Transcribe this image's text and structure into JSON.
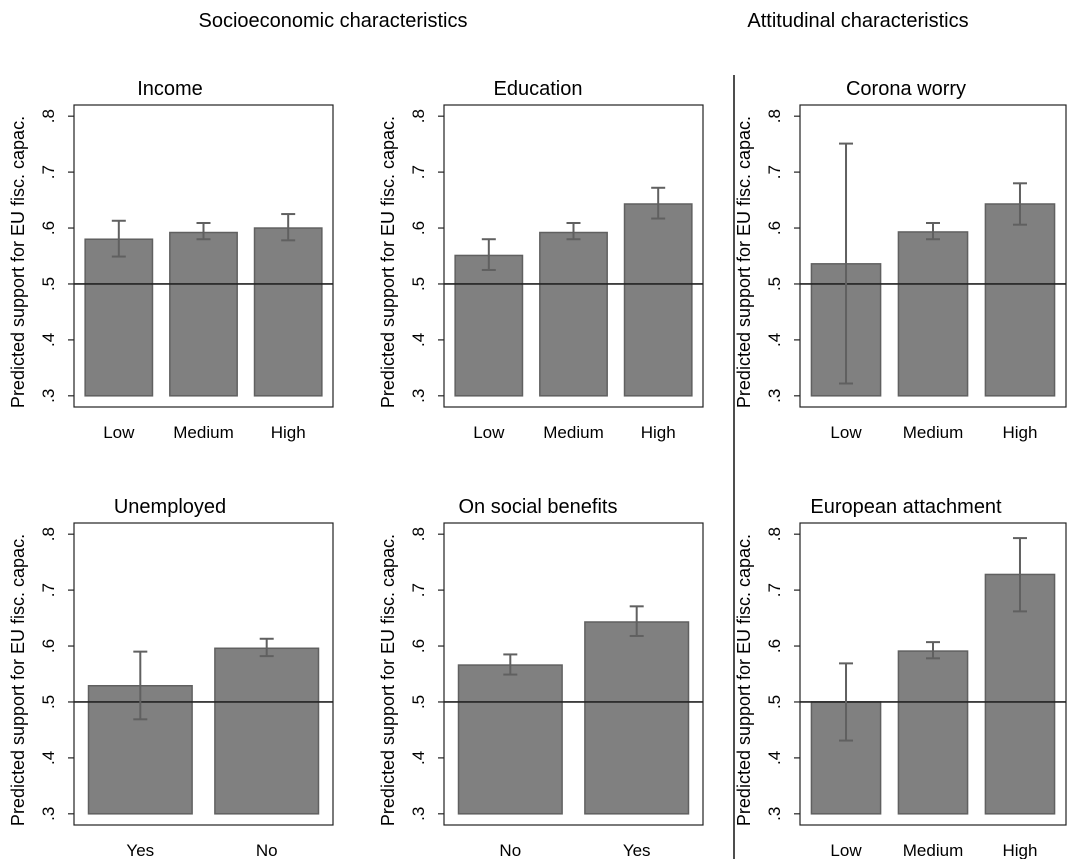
{
  "figure": {
    "section_titles": {
      "socioeconomic": "Socioeconomic characteristics",
      "attitudinal": "Attitudinal characteristics"
    }
  },
  "chart_data": [
    {
      "type": "bar",
      "title": "Income",
      "ylabel": "Predicted support for EU fisc. capac.",
      "yticks": [
        ".3",
        ".4",
        ".5",
        ".6",
        ".7",
        ".8"
      ],
      "ylim": [
        0.28,
        0.82
      ],
      "baseline": 0.3,
      "reference_line": 0.5,
      "categories": [
        "Low",
        "Medium",
        "High"
      ],
      "values": [
        0.58,
        0.592,
        0.6
      ],
      "ci_low": [
        0.549,
        0.58,
        0.578
      ],
      "ci_high": [
        0.613,
        0.609,
        0.625
      ]
    },
    {
      "type": "bar",
      "title": "Education",
      "ylabel": "Predicted support for EU fisc. capac.",
      "yticks": [
        ".3",
        ".4",
        ".5",
        ".6",
        ".7",
        ".8"
      ],
      "ylim": [
        0.28,
        0.82
      ],
      "baseline": 0.3,
      "reference_line": 0.5,
      "categories": [
        "Low",
        "Medium",
        "High"
      ],
      "values": [
        0.551,
        0.592,
        0.643
      ],
      "ci_low": [
        0.525,
        0.58,
        0.617
      ],
      "ci_high": [
        0.58,
        0.609,
        0.672
      ]
    },
    {
      "type": "bar",
      "title": "Corona worry",
      "ylabel": "Predicted support for EU fisc. capac.",
      "yticks": [
        ".3",
        ".4",
        ".5",
        ".6",
        ".7",
        ".8"
      ],
      "ylim": [
        0.28,
        0.82
      ],
      "baseline": 0.3,
      "reference_line": 0.5,
      "categories": [
        "Low",
        "Medium",
        "High"
      ],
      "values": [
        0.536,
        0.593,
        0.643
      ],
      "ci_low": [
        0.322,
        0.58,
        0.606
      ],
      "ci_high": [
        0.751,
        0.609,
        0.68
      ]
    },
    {
      "type": "bar",
      "title": "Unemployed",
      "ylabel": "Predicted support for EU fisc. capac.",
      "yticks": [
        ".3",
        ".4",
        ".5",
        ".6",
        ".7",
        ".8"
      ],
      "ylim": [
        0.28,
        0.82
      ],
      "baseline": 0.3,
      "reference_line": 0.5,
      "categories": [
        "Yes",
        "No"
      ],
      "values": [
        0.529,
        0.596
      ],
      "ci_low": [
        0.469,
        0.582
      ],
      "ci_high": [
        0.59,
        0.613
      ]
    },
    {
      "type": "bar",
      "title": "On social benefits",
      "ylabel": "Predicted support for EU fisc. capac.",
      "yticks": [
        ".3",
        ".4",
        ".5",
        ".6",
        ".7",
        ".8"
      ],
      "ylim": [
        0.28,
        0.82
      ],
      "baseline": 0.3,
      "reference_line": 0.5,
      "categories": [
        "No",
        "Yes"
      ],
      "values": [
        0.566,
        0.643
      ],
      "ci_low": [
        0.549,
        0.618
      ],
      "ci_high": [
        0.585,
        0.671
      ]
    },
    {
      "type": "bar",
      "title": "European attachment",
      "ylabel": "Predicted support for EU fisc. capac.",
      "yticks": [
        ".3",
        ".4",
        ".5",
        ".6",
        ".7",
        ".8"
      ],
      "ylim": [
        0.28,
        0.82
      ],
      "baseline": 0.3,
      "reference_line": 0.5,
      "categories": [
        "Low",
        "Medium",
        "High"
      ],
      "values": [
        0.5,
        0.591,
        0.728
      ],
      "ci_low": [
        0.431,
        0.578,
        0.662
      ],
      "ci_high": [
        0.569,
        0.607,
        0.793
      ]
    }
  ]
}
